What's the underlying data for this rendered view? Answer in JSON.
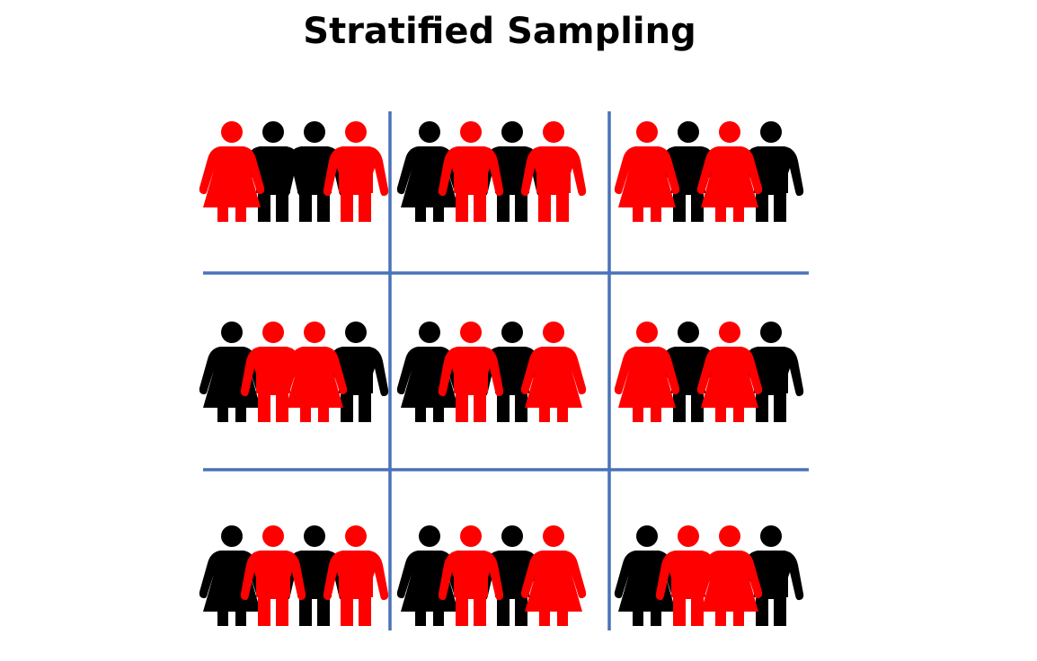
{
  "title": "Stratified Sampling",
  "colors": {
    "background": "#ffffff",
    "grid_line": "#4a72b8",
    "figure_red": "#ff0000",
    "figure_black": "#000000"
  },
  "grid": {
    "rows": 3,
    "cols": 3
  },
  "cells": [
    {
      "figures": [
        {
          "type": "woman",
          "color": "red"
        },
        {
          "type": "man",
          "color": "black"
        },
        {
          "type": "man",
          "color": "black"
        },
        {
          "type": "man",
          "color": "red"
        }
      ]
    },
    {
      "figures": [
        {
          "type": "woman",
          "color": "black"
        },
        {
          "type": "man",
          "color": "red"
        },
        {
          "type": "man",
          "color": "black"
        },
        {
          "type": "man",
          "color": "red"
        }
      ]
    },
    {
      "figures": [
        {
          "type": "woman",
          "color": "red"
        },
        {
          "type": "man",
          "color": "black"
        },
        {
          "type": "woman",
          "color": "red"
        },
        {
          "type": "man",
          "color": "black"
        }
      ]
    },
    {
      "figures": [
        {
          "type": "woman",
          "color": "black"
        },
        {
          "type": "man",
          "color": "red"
        },
        {
          "type": "woman",
          "color": "red"
        },
        {
          "type": "man",
          "color": "black"
        }
      ]
    },
    {
      "figures": [
        {
          "type": "woman",
          "color": "black"
        },
        {
          "type": "man",
          "color": "red"
        },
        {
          "type": "man",
          "color": "black"
        },
        {
          "type": "woman",
          "color": "red"
        }
      ]
    },
    {
      "figures": [
        {
          "type": "woman",
          "color": "red"
        },
        {
          "type": "man",
          "color": "black"
        },
        {
          "type": "woman",
          "color": "red"
        },
        {
          "type": "man",
          "color": "black"
        }
      ]
    },
    {
      "figures": [
        {
          "type": "woman",
          "color": "black"
        },
        {
          "type": "man",
          "color": "red"
        },
        {
          "type": "man",
          "color": "black"
        },
        {
          "type": "man",
          "color": "red"
        }
      ]
    },
    {
      "figures": [
        {
          "type": "woman",
          "color": "black"
        },
        {
          "type": "man",
          "color": "red"
        },
        {
          "type": "man",
          "color": "black"
        },
        {
          "type": "woman",
          "color": "red"
        }
      ]
    },
    {
      "figures": [
        {
          "type": "woman",
          "color": "black"
        },
        {
          "type": "man",
          "color": "red"
        },
        {
          "type": "woman",
          "color": "red"
        },
        {
          "type": "man",
          "color": "black"
        }
      ]
    }
  ]
}
